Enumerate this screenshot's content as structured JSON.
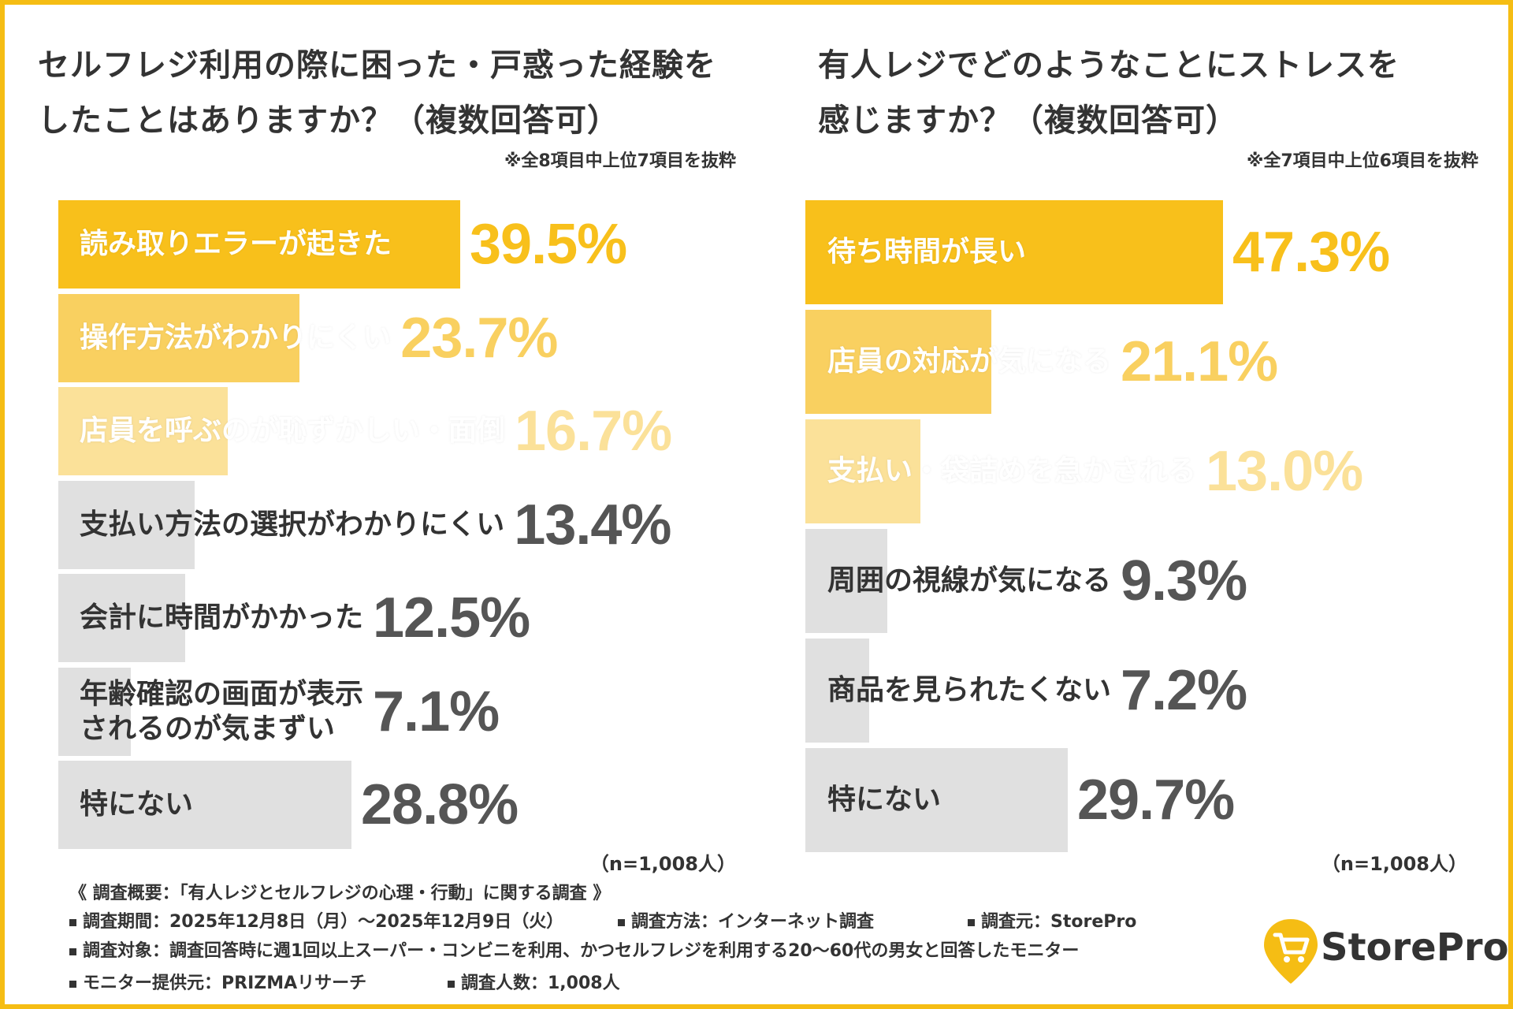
{
  "colors": {
    "accent": "#f5bd14",
    "rank1": "#f8c01b",
    "rank2": "#f9d060",
    "rank3": "#fbe199",
    "gray_bar": "#e0e0e0",
    "value_gray": "#555555",
    "text_dark": "#333333"
  },
  "chart_data": [
    {
      "type": "bar",
      "orientation": "horizontal",
      "title_lines": [
        "セルフレジ利用の際に困った・戸惑った経験を",
        "したことはありますか？（複数回答可）"
      ],
      "note": "※全8項目中上位7項目を抜粋",
      "categories": [
        [
          "読み取りエラーが起きた"
        ],
        [
          "操作方法がわかりにくい"
        ],
        [
          "店員を呼ぶのが恥ずかしい・面倒"
        ],
        [
          "支払い方法の選択がわかりにくい"
        ],
        [
          "会計に時間がかかった"
        ],
        [
          "年齢確認の画面が表示",
          "されるのが気まずい"
        ],
        [
          "特にない"
        ]
      ],
      "values": [
        39.5,
        23.7,
        16.7,
        13.4,
        12.5,
        7.1,
        28.8
      ],
      "value_labels": [
        "39.5%",
        "23.7%",
        "16.7%",
        "13.4%",
        "12.5%",
        "7.1%",
        "28.8%"
      ],
      "unit": "%",
      "xlim": [
        0,
        50
      ],
      "n_label": "（n=1,008人）"
    },
    {
      "type": "bar",
      "orientation": "horizontal",
      "title_lines": [
        "有人レジでどのようなことにストレスを",
        "感じますか？（複数回答可）"
      ],
      "note": "※全7項目中上位6項目を抜粋",
      "categories": [
        [
          "待ち時間が長い"
        ],
        [
          "店員の対応が気になる"
        ],
        [
          "支払い・袋詰めを急かされる"
        ],
        [
          "周囲の視線が気になる"
        ],
        [
          "商品を見られたくない"
        ],
        [
          "特にない"
        ]
      ],
      "values": [
        47.3,
        21.1,
        13.0,
        9.3,
        7.2,
        29.7
      ],
      "value_labels": [
        "47.3%",
        "21.1%",
        "13.0%",
        "9.3%",
        "7.2%",
        "29.7%"
      ],
      "unit": "%",
      "xlim": [
        0,
        50
      ],
      "n_label": "（n=1,008人）"
    }
  ],
  "footer": {
    "heading": "《 調査概要：「有人レジとセルフレジの心理・行動」に関する調査 》",
    "period": "調査期間：2025年12月8日（月）〜2025年12月9日（火）",
    "method": "調査方法：インターネット調査",
    "source": "調査元：StorePro",
    "target": "調査対象：調査回答時に週1回以上スーパー・コンビニを利用、かつセルフレジを利用する20〜60代の男女と回答したモニター",
    "provider": "モニター提供元：PRIZMAリサーチ",
    "count": "調査人数：1,008人"
  },
  "logo": {
    "text": "StorePro",
    "icon": "shopping-cart-pin-icon"
  }
}
